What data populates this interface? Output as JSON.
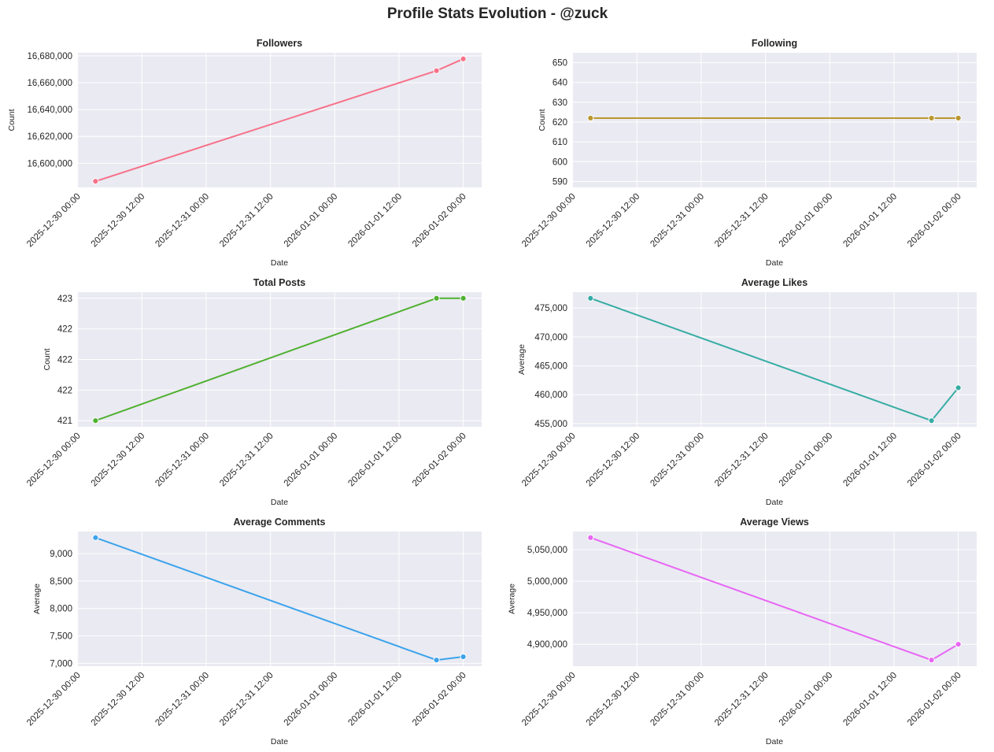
{
  "figure_title": "Profile Stats Evolution - @zuck",
  "chart_data": [
    {
      "type": "line",
      "title": "Followers",
      "xlabel": "Date",
      "ylabel": "Count",
      "color": "#f77189",
      "x": [
        "2025-12-30 03:20",
        "2026-01-01 19:00",
        "2026-01-02 00:00"
      ],
      "values": [
        16586600,
        16668900,
        16677700
      ],
      "yticks": [
        16600000,
        16620000,
        16640000,
        16660000,
        16680000
      ],
      "ytick_labels": [
        "16,600,000",
        "16,620,000",
        "16,640,000",
        "16,660,000",
        "16,680,000"
      ],
      "grid": true
    },
    {
      "type": "line",
      "title": "Following",
      "xlabel": "Date",
      "ylabel": "Count",
      "color": "#bb9832",
      "x": [
        "2025-12-30 03:20",
        "2026-01-01 19:00",
        "2026-01-02 00:00"
      ],
      "values": [
        622,
        622,
        622
      ],
      "ylim": [
        587,
        655
      ],
      "yticks": [
        590,
        600,
        610,
        620,
        630,
        640,
        650
      ],
      "ytick_labels": [
        "590",
        "600",
        "610",
        "620",
        "630",
        "640",
        "650"
      ],
      "grid": true
    },
    {
      "type": "line",
      "title": "Total Posts",
      "xlabel": "Date",
      "ylabel": "Count",
      "color": "#50b131",
      "x": [
        "2025-12-30 03:20",
        "2026-01-01 19:00",
        "2026-01-02 00:00"
      ],
      "values": [
        421,
        423,
        423
      ],
      "yticks": [
        421,
        421.5,
        422,
        422.5,
        423
      ],
      "ytick_labels": [
        "421",
        "422",
        "422",
        "422",
        "423"
      ],
      "grid": true
    },
    {
      "type": "line",
      "title": "Average Likes",
      "xlabel": "Date",
      "ylabel": "Average",
      "color": "#36ada4",
      "x": [
        "2025-12-30 03:20",
        "2026-01-01 19:00",
        "2026-01-02 00:00"
      ],
      "values": [
        476700,
        455500,
        461200
      ],
      "yticks": [
        455000,
        460000,
        465000,
        470000,
        475000
      ],
      "ytick_labels": [
        "455,000",
        "460,000",
        "465,000",
        "470,000",
        "475,000"
      ],
      "grid": true
    },
    {
      "type": "line",
      "title": "Average Comments",
      "xlabel": "Date",
      "ylabel": "Average",
      "color": "#3ba3ec",
      "x": [
        "2025-12-30 03:20",
        "2026-01-01 19:00",
        "2026-01-02 00:00"
      ],
      "values": [
        9290,
        7060,
        7120
      ],
      "yticks": [
        7000,
        7500,
        8000,
        8500,
        9000
      ],
      "ytick_labels": [
        "7,000",
        "7,500",
        "8,000",
        "8,500",
        "9,000"
      ],
      "grid": true
    },
    {
      "type": "line",
      "title": "Average Views",
      "xlabel": "Date",
      "ylabel": "Average",
      "color": "#e866f4",
      "x": [
        "2025-12-30 03:20",
        "2026-01-01 19:00",
        "2026-01-02 00:00"
      ],
      "values": [
        5069000,
        4875000,
        4900000
      ],
      "yticks": [
        4900000,
        4950000,
        5000000,
        5050000
      ],
      "ytick_labels": [
        "4,900,000",
        "4,950,000",
        "5,000,000",
        "5,050,000"
      ],
      "grid": true
    }
  ],
  "xticks": [
    "2025-12-30 00:00",
    "2025-12-30 12:00",
    "2025-12-31 00:00",
    "2025-12-31 12:00",
    "2026-01-01 00:00",
    "2026-01-01 12:00",
    "2026-01-02 00:00"
  ],
  "style": {
    "plot_background": "#eaeaf2",
    "grid_color": "#ffffff",
    "text_color": "#262626"
  }
}
